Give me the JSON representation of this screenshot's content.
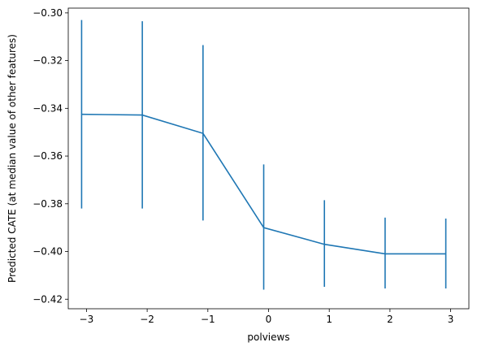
{
  "chart_data": {
    "type": "line",
    "title": "",
    "xlabel": "polviews",
    "ylabel": "Predicted CATE (at median value of other features)",
    "xlim": [
      -3.3,
      3.3
    ],
    "ylim": [
      -0.424,
      -0.298
    ],
    "xticks": [
      -3,
      -2,
      -1,
      0,
      1,
      2,
      3
    ],
    "xtick_labels": [
      "−3",
      "−2",
      "−1",
      "0",
      "1",
      "2",
      "3"
    ],
    "yticks": [
      -0.42,
      -0.4,
      -0.38,
      -0.36,
      -0.34,
      -0.32,
      -0.3
    ],
    "ytick_labels": [
      "−0.42",
      "−0.40",
      "−0.38",
      "−0.36",
      "−0.34",
      "−0.32",
      "−0.30"
    ],
    "grid": false,
    "color": "#1f77b4",
    "series": [
      {
        "x": [
          -3.08,
          -2.08,
          -1.08,
          -0.08,
          0.92,
          1.92,
          2.92
        ],
        "y": [
          -0.3425,
          -0.3428,
          -0.3505,
          -0.39,
          -0.397,
          -0.401,
          -0.401
        ],
        "y_lower": [
          -0.382,
          -0.382,
          -0.387,
          -0.416,
          -0.4148,
          -0.4155,
          -0.4155
        ],
        "y_upper": [
          -0.303,
          -0.3035,
          -0.3135,
          -0.3635,
          -0.3785,
          -0.3858,
          -0.3862
        ]
      }
    ]
  }
}
